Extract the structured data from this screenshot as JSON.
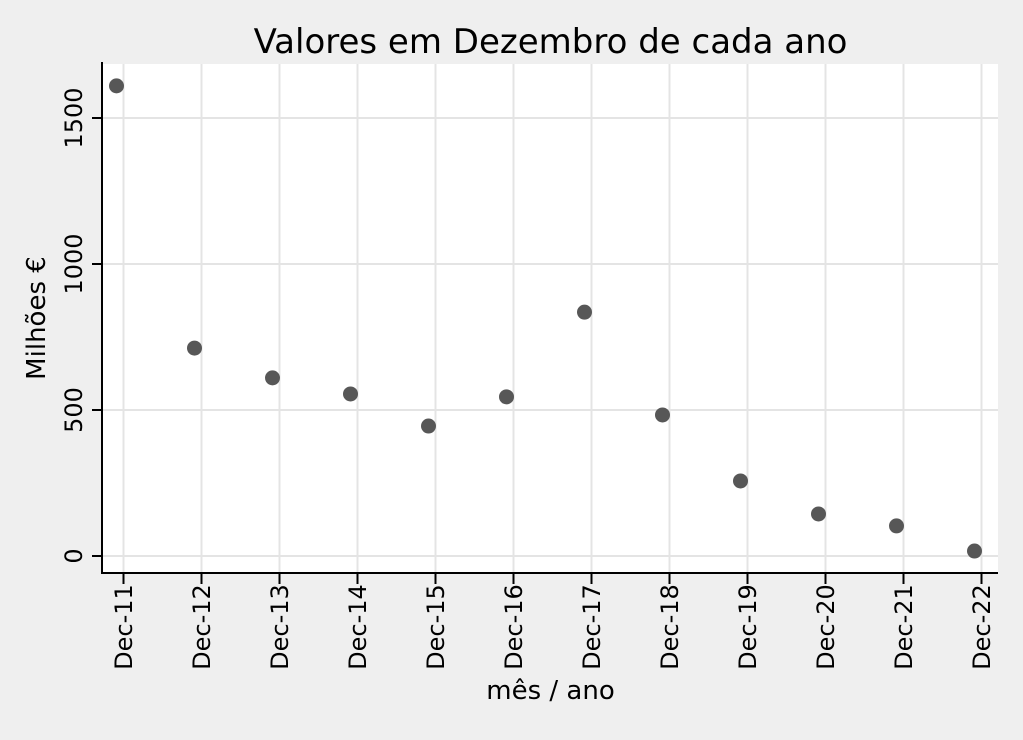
{
  "page": {
    "background": "#efefef"
  },
  "chart_data": {
    "type": "scatter",
    "title": "Valores em Dezembro de cada ano",
    "xlabel": "mês / ano",
    "ylabel": "Milhões €",
    "categories": [
      "Dec-11",
      "Dec-12",
      "Dec-13",
      "Dec-14",
      "Dec-15",
      "Dec-16",
      "Dec-17",
      "Dec-18",
      "Dec-19",
      "Dec-20",
      "Dec-21",
      "Dec-22"
    ],
    "values": [
      1610,
      712,
      610,
      555,
      445,
      545,
      835,
      483,
      257,
      144,
      103,
      17
    ],
    "yticks": [
      0,
      500,
      1000,
      1500
    ],
    "ylim": [
      -55,
      1685
    ],
    "grid": true,
    "legend": "none",
    "colors": {
      "marker": "#575757",
      "background": "#efefef",
      "plot_background": "#ffffff",
      "gridline": "#e4e4e4",
      "axis": "#000000",
      "text": "#000000"
    }
  }
}
